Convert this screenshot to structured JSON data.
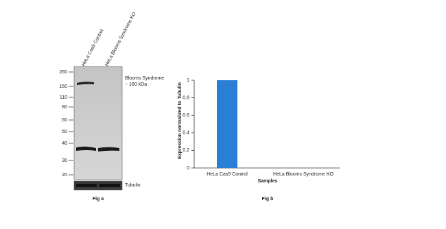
{
  "blot": {
    "lanes": [
      "HeLa Cas9 Control",
      "HeLa Blooms Syndrome KO"
    ],
    "markers": [
      260,
      160,
      110,
      80,
      60,
      50,
      40,
      30,
      20
    ],
    "band_label": [
      "Blooms Syndrome",
      "~ 160 kDa"
    ],
    "loading_control": "Tubulin",
    "caption": "Fig a"
  },
  "chart_data": {
    "type": "bar",
    "caption": "Fig b",
    "x_label": "Samples",
    "y_label": "Expression normalized to Tubulin",
    "categories": [
      "HeLa Cas9 Control",
      "HeLa Blooms Syndrome KO"
    ],
    "values": [
      1,
      0
    ],
    "color": "#2a7fd4",
    "ylim": [
      0,
      1
    ],
    "yticks": [
      0,
      0.2,
      0.4,
      0.6,
      0.8,
      1
    ]
  }
}
